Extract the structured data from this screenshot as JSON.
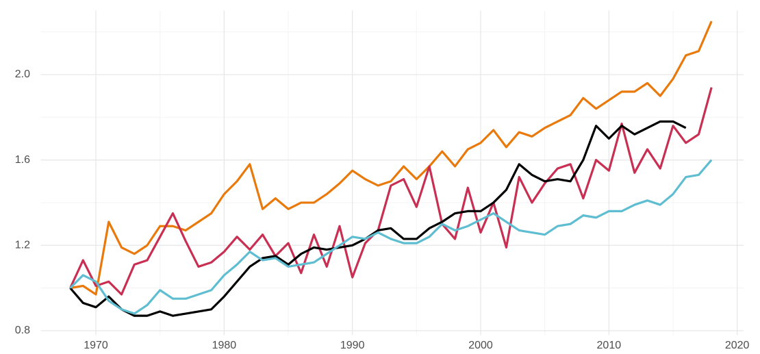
{
  "chart_data": {
    "type": "line",
    "x": [
      1968,
      1969,
      1970,
      1971,
      1972,
      1973,
      1974,
      1975,
      1976,
      1977,
      1978,
      1979,
      1980,
      1981,
      1982,
      1983,
      1984,
      1985,
      1986,
      1987,
      1988,
      1989,
      1990,
      1991,
      1992,
      1993,
      1994,
      1995,
      1996,
      1997,
      1998,
      1999,
      2000,
      2001,
      2002,
      2003,
      2004,
      2005,
      2006,
      2007,
      2008,
      2009,
      2010,
      2011,
      2012,
      2013,
      2014,
      2015,
      2016,
      2017,
      2018
    ],
    "series": [
      {
        "color": "#e8790a",
        "values": [
          1.0,
          1.01,
          0.97,
          1.31,
          1.19,
          1.16,
          1.2,
          1.29,
          1.29,
          1.27,
          1.31,
          1.35,
          1.44,
          1.5,
          1.58,
          1.37,
          1.42,
          1.37,
          1.4,
          1.4,
          1.44,
          1.49,
          1.55,
          1.51,
          1.48,
          1.5,
          1.57,
          1.51,
          1.57,
          1.64,
          1.57,
          1.65,
          1.68,
          1.74,
          1.66,
          1.73,
          1.71,
          1.75,
          1.78,
          1.81,
          1.89,
          1.84,
          1.88,
          1.92,
          1.92,
          1.96,
          1.9,
          1.98,
          2.09,
          2.11,
          2.25
        ]
      },
      {
        "color": "#c82f52",
        "values": [
          1.0,
          1.13,
          1.01,
          1.03,
          0.97,
          1.11,
          1.13,
          1.24,
          1.35,
          1.22,
          1.1,
          1.12,
          1.17,
          1.24,
          1.18,
          1.25,
          1.15,
          1.21,
          1.07,
          1.25,
          1.1,
          1.29,
          1.05,
          1.21,
          1.27,
          1.48,
          1.51,
          1.38,
          1.57,
          1.3,
          1.23,
          1.47,
          1.26,
          1.4,
          1.19,
          1.52,
          1.4,
          1.49,
          1.56,
          1.58,
          1.42,
          1.6,
          1.55,
          1.77,
          1.54,
          1.65,
          1.56,
          1.76,
          1.68,
          1.72,
          1.94
        ]
      },
      {
        "color": "#000000",
        "values": [
          1.0,
          0.93,
          0.91,
          0.96,
          0.9,
          0.87,
          0.87,
          0.89,
          0.87,
          0.88,
          0.89,
          0.9,
          0.96,
          1.03,
          1.1,
          1.14,
          1.15,
          1.11,
          1.16,
          1.19,
          1.18,
          1.19,
          1.2,
          1.23,
          1.27,
          1.28,
          1.23,
          1.23,
          1.28,
          1.31,
          1.35,
          1.36,
          1.36,
          1.4,
          1.46,
          1.58,
          1.53,
          1.5,
          1.51,
          1.5,
          1.6,
          1.76,
          1.7,
          1.76,
          1.72,
          1.75,
          1.78,
          1.78,
          1.75,
          null,
          null
        ]
      },
      {
        "color": "#5fbdd1",
        "values": [
          1.0,
          1.06,
          1.03,
          0.94,
          0.9,
          0.88,
          0.92,
          0.99,
          0.95,
          0.95,
          0.97,
          0.99,
          1.06,
          1.11,
          1.17,
          1.13,
          1.14,
          1.1,
          1.11,
          1.12,
          1.16,
          1.2,
          1.24,
          1.23,
          1.26,
          1.23,
          1.21,
          1.21,
          1.24,
          1.3,
          1.27,
          1.29,
          1.32,
          1.35,
          1.31,
          1.27,
          1.26,
          1.25,
          1.29,
          1.3,
          1.34,
          1.33,
          1.36,
          1.36,
          1.39,
          1.41,
          1.39,
          1.44,
          1.52,
          1.53,
          1.6
        ]
      }
    ],
    "xlim": [
      1965.7,
      2020.5
    ],
    "ylim": [
      0.78,
      2.3
    ],
    "xticks": [
      1970,
      1980,
      1990,
      2000,
      2010,
      2020
    ],
    "yticks": [
      0.8,
      1.2,
      1.6,
      {
        "value": 2,
        "label": "2.0"
      }
    ],
    "minor_xticks": [
      1975,
      1985,
      1995,
      2005,
      2015
    ],
    "minor_yticks": [
      1.0,
      1.4,
      1.8,
      2.2
    ],
    "grid": true
  }
}
